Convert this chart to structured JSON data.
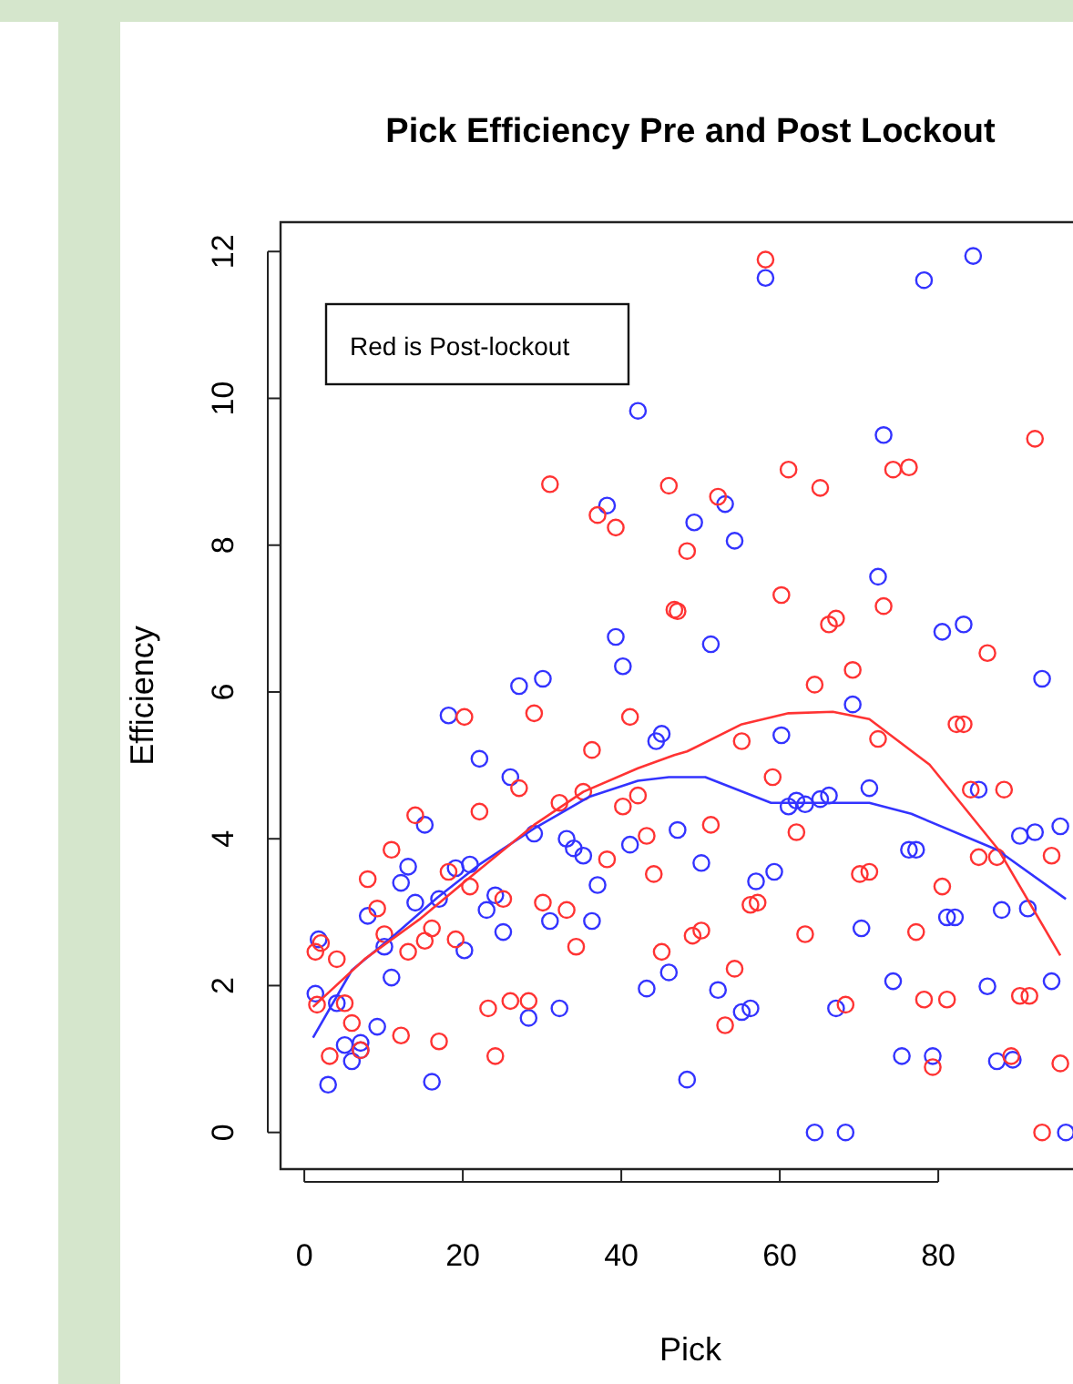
{
  "chart_data": {
    "type": "scatter",
    "title": "Pick Efficiency Pre and Post Lockout",
    "xlabel": "Pick",
    "ylabel": "Efficiency",
    "annotations": [
      "Red is Post-lockout"
    ],
    "xlim": [
      -3,
      97
    ],
    "xticks": [
      0,
      20,
      40,
      60,
      80
    ],
    "ylim": [
      -0.5,
      12.4
    ],
    "yticks": [
      0,
      2,
      4,
      6,
      8,
      10,
      12
    ],
    "marker": "circle",
    "grid": false,
    "series": [
      {
        "color": "#3333ff",
        "x": [
          1.8,
          1.4,
          4.1,
          5.1,
          6.0,
          7.1,
          7.1,
          3.0,
          9.2,
          11.0,
          8.0,
          10.1,
          12.2,
          13.1,
          14.0,
          15.2,
          17.0,
          16.1,
          18.2,
          19.1,
          20.9,
          20.2,
          22.1,
          24.1,
          23.0,
          25.1,
          26.0,
          27.1,
          30.1,
          28.3,
          32.2,
          29.0,
          31.0,
          33.1,
          34.0,
          35.2,
          37.0,
          36.3,
          41.1,
          43.2,
          44.4,
          45.1,
          46.0,
          47.1,
          42.1,
          38.2,
          39.3,
          40.2,
          58.2,
          78.2,
          84.4,
          73.1,
          53.1,
          49.2,
          54.3,
          72.4,
          51.3,
          80.5,
          83.2,
          93.1,
          69.2,
          60.2,
          71.3,
          85.1,
          61.1,
          62.1,
          63.2,
          65.1,
          66.2,
          90.3,
          92.2,
          95.4,
          76.3,
          77.2,
          50.1,
          57.0,
          59.3,
          81.1,
          82.1,
          88.0,
          91.3,
          70.3,
          52.2,
          74.3,
          86.2,
          94.3,
          55.2,
          56.3,
          67.1,
          75.4,
          79.3,
          87.4,
          89.4,
          48.3,
          64.4,
          68.3,
          96.1
        ],
        "values": [
          2.63,
          1.89,
          1.76,
          1.19,
          0.97,
          1.22,
          1.12,
          0.65,
          1.44,
          2.11,
          2.95,
          2.53,
          3.4,
          3.62,
          3.13,
          4.19,
          3.18,
          0.69,
          5.68,
          3.6,
          3.65,
          2.48,
          5.09,
          3.23,
          3.03,
          2.73,
          4.84,
          6.08,
          6.18,
          1.56,
          1.69,
          4.07,
          2.88,
          4.0,
          3.87,
          3.77,
          3.37,
          2.88,
          3.92,
          1.96,
          5.33,
          5.43,
          2.18,
          4.12,
          9.83,
          8.54,
          6.75,
          6.35,
          11.64,
          11.61,
          11.94,
          9.5,
          8.56,
          8.31,
          8.06,
          7.57,
          6.65,
          6.82,
          6.92,
          6.18,
          5.83,
          5.41,
          4.69,
          4.67,
          4.44,
          4.52,
          4.47,
          4.54,
          4.59,
          4.04,
          4.09,
          4.17,
          3.85,
          3.85,
          3.67,
          3.42,
          3.55,
          2.93,
          2.93,
          3.03,
          3.05,
          2.78,
          1.94,
          2.06,
          1.99,
          2.06,
          1.64,
          1.69,
          1.69,
          1.04,
          1.04,
          0.97,
          0.99,
          0.72,
          0,
          0,
          0
        ]
      },
      {
        "color": "#ff3333",
        "x": [
          1.4,
          2.1,
          4.1,
          1.6,
          5.1,
          6.0,
          3.2,
          7.1,
          8.0,
          9.2,
          10.1,
          11.0,
          13.1,
          14.0,
          15.2,
          16.1,
          12.2,
          17.0,
          18.2,
          19.1,
          20.2,
          20.9,
          22.1,
          25.1,
          27.1,
          29.0,
          30.1,
          33.1,
          34.3,
          23.2,
          26.0,
          28.3,
          24.1,
          32.2,
          35.2,
          36.3,
          38.2,
          40.2,
          42.1,
          41.1,
          43.2,
          44.1,
          45.1,
          31.0,
          37.0,
          39.3,
          46.0,
          46.7,
          58.2,
          92.2,
          61.1,
          65.1,
          74.3,
          76.3,
          52.2,
          48.3,
          47.1,
          60.2,
          73.1,
          66.2,
          67.1,
          86.2,
          69.2,
          64.4,
          55.2,
          72.4,
          82.3,
          83.2,
          59.1,
          84.1,
          88.3,
          51.3,
          62.1,
          85.1,
          87.4,
          94.3,
          70.1,
          71.3,
          80.5,
          56.3,
          57.2,
          49.0,
          50.1,
          63.2,
          77.2,
          54.3,
          78.2,
          81.1,
          90.3,
          91.5,
          68.3,
          53.1,
          79.3,
          89.2,
          95.4,
          93.1
        ],
        "values": [
          2.46,
          2.58,
          2.36,
          1.74,
          1.76,
          1.49,
          1.04,
          1.12,
          3.45,
          3.05,
          2.7,
          3.85,
          2.46,
          4.32,
          2.61,
          2.78,
          1.32,
          1.24,
          3.55,
          2.63,
          5.66,
          3.35,
          4.37,
          3.18,
          4.69,
          5.71,
          3.13,
          3.03,
          2.53,
          1.69,
          1.79,
          1.79,
          1.04,
          4.49,
          4.64,
          5.21,
          3.72,
          4.44,
          4.59,
          5.66,
          4.04,
          3.52,
          2.46,
          8.83,
          8.41,
          8.24,
          8.81,
          7.12,
          11.89,
          9.45,
          9.03,
          8.78,
          9.03,
          9.06,
          8.66,
          7.92,
          7.1,
          7.32,
          7.17,
          6.92,
          7.0,
          6.53,
          6.3,
          6.1,
          5.33,
          5.36,
          5.56,
          5.56,
          4.84,
          4.67,
          4.67,
          4.19,
          4.09,
          3.75,
          3.75,
          3.77,
          3.52,
          3.55,
          3.35,
          3.1,
          3.13,
          2.68,
          2.75,
          2.7,
          2.73,
          2.23,
          1.81,
          1.81,
          1.86,
          1.86,
          1.74,
          1.46,
          0.89,
          1.04,
          0.94,
          0
        ]
      },
      {
        "type": "line",
        "marker": "none",
        "color": "#3333ff",
        "x": [
          1.1,
          6.0,
          11.5,
          16.8,
          22.1,
          29.0,
          35.9,
          42.1,
          46.0,
          50.6,
          58.9,
          71.3,
          76.6,
          87.4,
          96.1
        ],
        "values": [
          1.29,
          2.21,
          2.7,
          3.2,
          3.65,
          4.14,
          4.57,
          4.79,
          4.84,
          4.84,
          4.49,
          4.49,
          4.34,
          3.85,
          3.18
        ]
      },
      {
        "type": "line",
        "marker": "none",
        "color": "#ff3333",
        "x": [
          1.1,
          7.6,
          14.5,
          21.4,
          29.0,
          35.2,
          42.1,
          46.7,
          48.3,
          55.2,
          61.1,
          66.7,
          71.3,
          78.9,
          87.6,
          95.4
        ],
        "values": [
          1.71,
          2.36,
          2.9,
          3.52,
          4.19,
          4.64,
          4.96,
          5.14,
          5.19,
          5.56,
          5.71,
          5.73,
          5.63,
          5.01,
          3.85,
          2.41
        ]
      }
    ]
  }
}
